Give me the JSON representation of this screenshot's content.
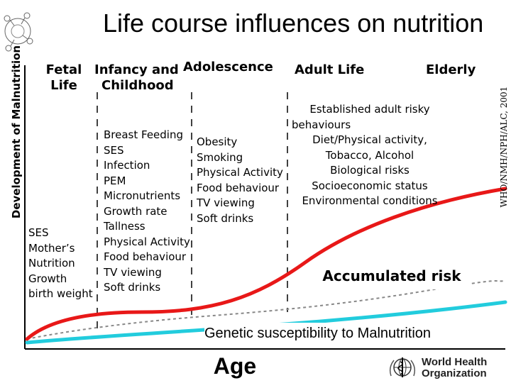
{
  "title": "Life course influences on nutrition",
  "y_axis_label": "Development of Malnutrition",
  "x_axis_label": "Age",
  "credit": "WHO/NMH/NPH/ALC, 2001",
  "stages": {
    "fetal": [
      "Fetal",
      "Life"
    ],
    "infancy": [
      "Infancy and",
      "Childhood"
    ],
    "adolescence": "Adolescence",
    "adult": "Adult Life",
    "elderly": "Elderly"
  },
  "factors": {
    "fetal": [
      "SES",
      "Mother’s",
      "Nutrition",
      "Growth",
      "birth weight"
    ],
    "infancy": [
      "Breast Feeding",
      "SES",
      "Infection",
      "PEM",
      "Micronutrients",
      "Growth rate",
      "Tallness",
      "Physical Activity",
      "Food behaviour",
      "TV viewing",
      "Soft drinks"
    ],
    "adolescence": [
      "Obesity",
      "Smoking",
      "Physical Activity",
      "Food behaviour",
      "TV viewing",
      "Soft drinks"
    ],
    "adult": [
      "Established adult risky",
      "behaviours",
      "Diet/Physical activity,",
      "Tobacco, Alcohol",
      "Biological risks",
      "Socioeconomic status",
      "Environmental conditions"
    ]
  },
  "accumulated_risk_label": "Accumulated risk",
  "genetic_label": "Genetic susceptibility to Malnutrition",
  "who_logo": {
    "line1": "World Health",
    "line2": "Organization",
    "icon": "who-emblem-icon"
  },
  "colors": {
    "risk_curve": "#e81818",
    "genetic_line": "#22ccdd",
    "axis": "#000000"
  }
}
